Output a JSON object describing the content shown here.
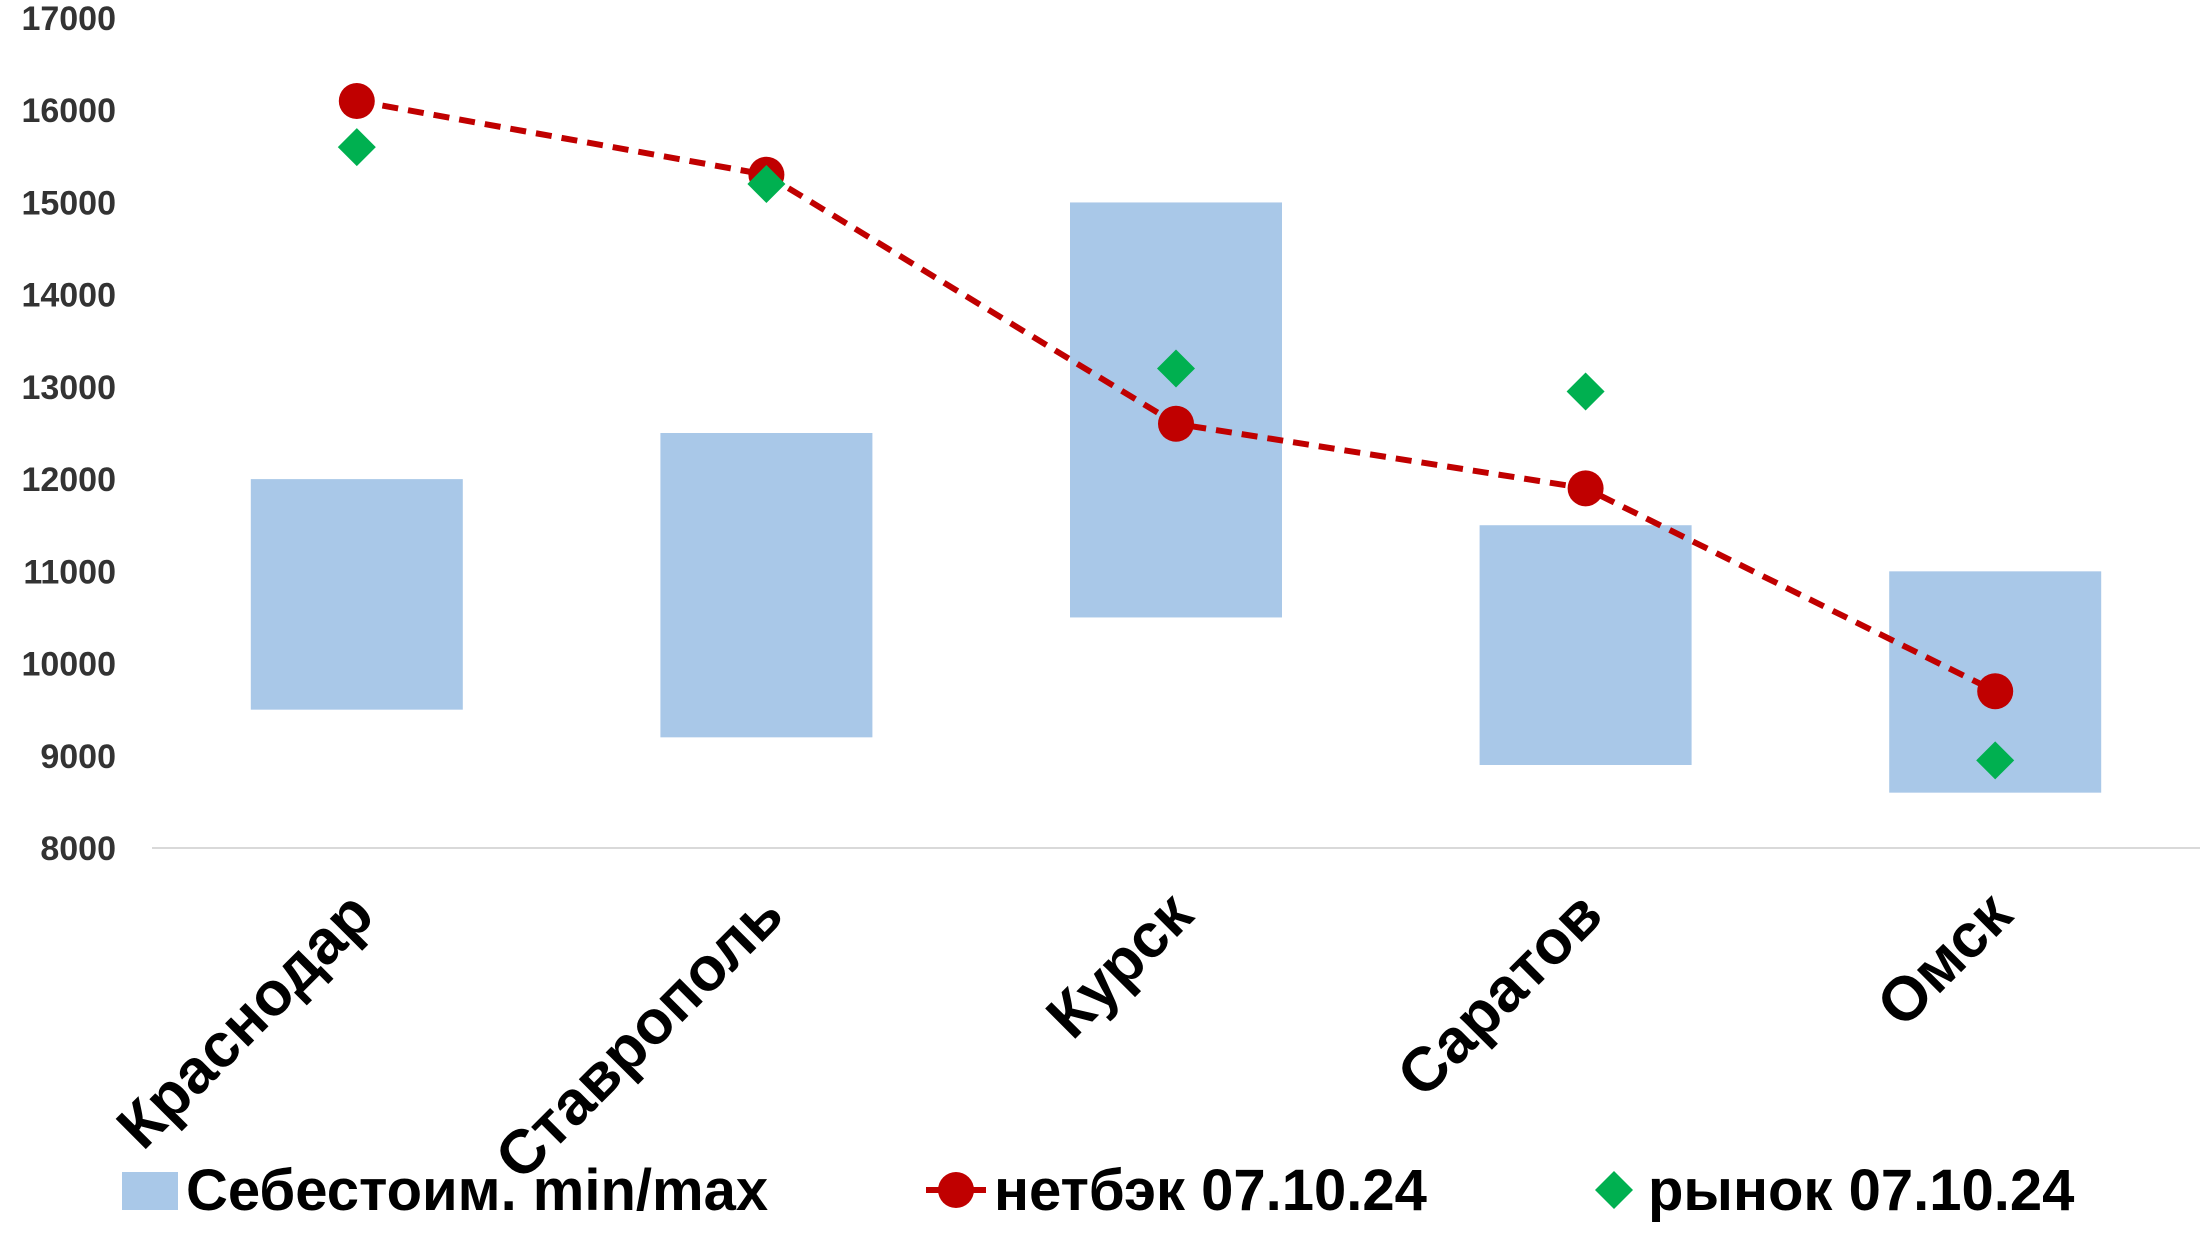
{
  "chart_data": {
    "type": "bar",
    "title": "",
    "xlabel": "",
    "ylabel": "",
    "ylim": [
      8000,
      17000
    ],
    "yticks": [
      8000,
      9000,
      10000,
      11000,
      12000,
      13000,
      14000,
      15000,
      16000,
      17000
    ],
    "grid": false,
    "legend_position": "bottom",
    "categories": [
      "Краснодар",
      "Ставрополь",
      "Курск",
      "Саратов",
      "Омск"
    ],
    "series": [
      {
        "name": "Себестоим. min/max",
        "kind": "floating-bar",
        "color": "#a9c8e8",
        "min": [
          9500,
          9200,
          10500,
          8900,
          8600
        ],
        "max": [
          12000,
          12500,
          15000,
          11500,
          11000
        ]
      },
      {
        "name": "нетбэк 07.10.24",
        "kind": "line",
        "marker": "circle",
        "line_style": "dashed",
        "color": "#c00000",
        "values": [
          16100,
          15300,
          12600,
          11900,
          9700
        ]
      },
      {
        "name": "рынок 07.10.24",
        "kind": "scatter",
        "marker": "diamond",
        "color": "#00b050",
        "values": [
          15600,
          15200,
          13200,
          12950,
          8950
        ]
      }
    ]
  }
}
